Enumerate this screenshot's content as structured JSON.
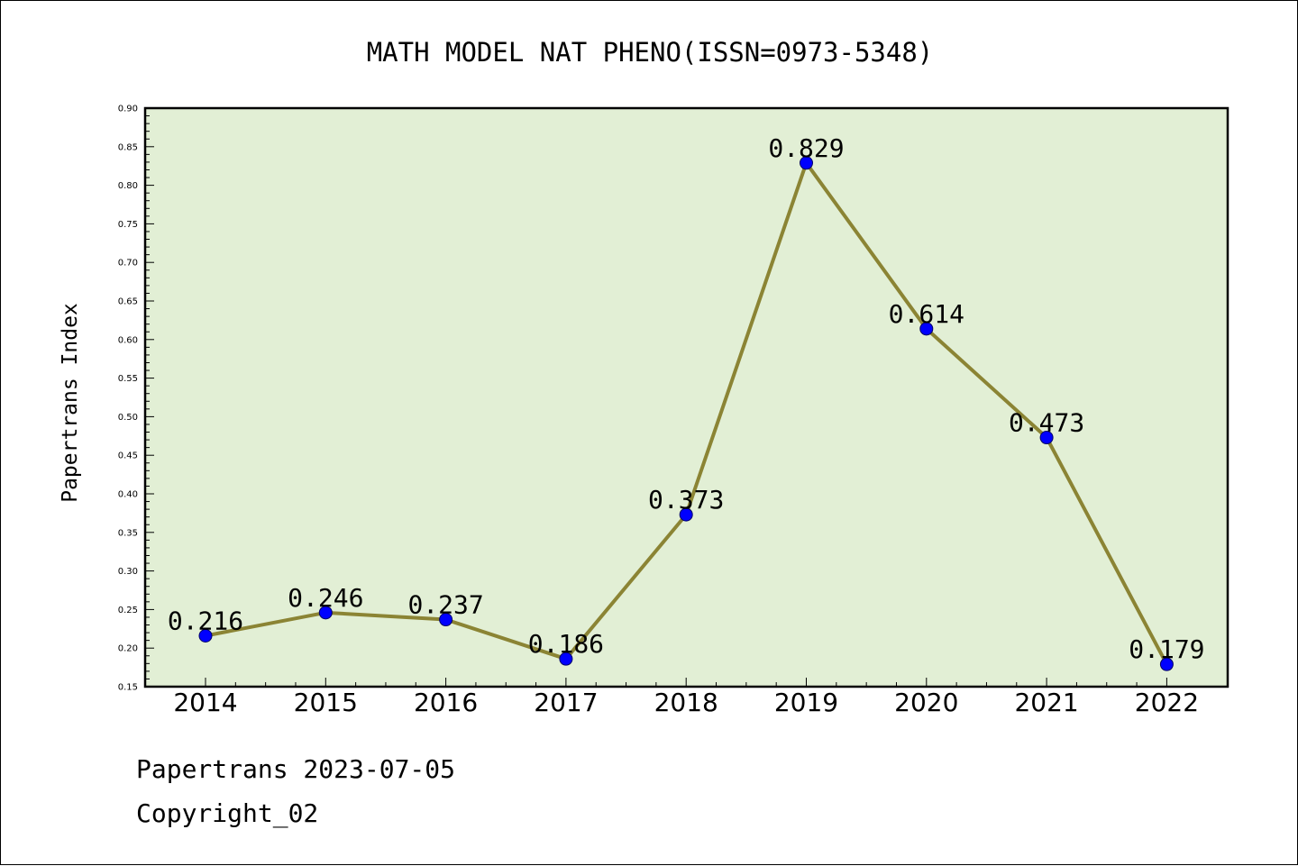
{
  "footer": {
    "line1": "Papertrans 2023-07-05",
    "line2": "Copyright_02"
  },
  "chart_data": {
    "type": "line",
    "title": "MATH MODEL NAT PHENO(ISSN=0973-5348)",
    "xlabel": "",
    "ylabel": "Papertrans Index",
    "categories": [
      "2014",
      "2015",
      "2016",
      "2017",
      "2018",
      "2019",
      "2020",
      "2021",
      "2022"
    ],
    "series": [
      {
        "values": [
          0.216,
          0.246,
          0.237,
          0.186,
          0.373,
          0.829,
          0.614,
          0.473,
          0.179
        ]
      }
    ],
    "data_labels": [
      "0.216",
      "0.246",
      "0.237",
      "0.186",
      "0.373",
      "0.829",
      "0.614",
      "0.473",
      "0.179"
    ],
    "ylim": [
      0.15,
      0.9
    ],
    "yticks": [
      "0.15",
      "0.20",
      "0.25",
      "0.30",
      "0.35",
      "0.40",
      "0.45",
      "0.50",
      "0.55",
      "0.60",
      "0.65",
      "0.70",
      "0.75",
      "0.80",
      "0.85",
      "0.90"
    ],
    "grid": false,
    "legend": "none",
    "colors": {
      "plot_background": "#e2efd5",
      "line": "#8b8434",
      "marker": "#0000ff",
      "marker_edge": "#000066"
    }
  }
}
